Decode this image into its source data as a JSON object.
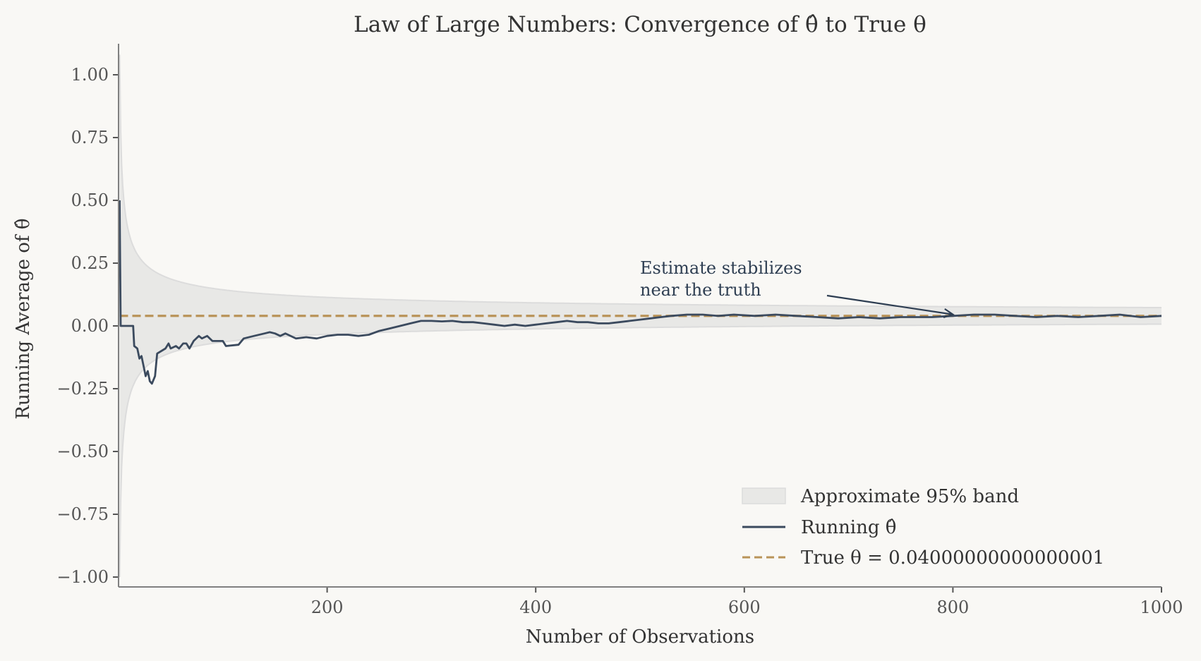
{
  "chart_data": {
    "type": "line",
    "title": "Law of Large Numbers: Convergence of θ̂ to True θ",
    "xlabel": "Number of Observations",
    "ylabel": "Running Average of θ̂",
    "xlim": [
      1,
      1000
    ],
    "ylim": [
      -1.03,
      1.12
    ],
    "xticks": [
      200,
      400,
      600,
      800,
      1000
    ],
    "xtick_labels": [
      "200",
      "400",
      "600",
      "800",
      "1000"
    ],
    "yticks": [
      1.0,
      0.75,
      0.5,
      0.25,
      0.0,
      -0.25,
      -0.5,
      -0.75,
      -1.0
    ],
    "ytick_labels": [
      "1.00",
      "0.75",
      "0.50",
      "0.25",
      "0.00",
      "−0.25",
      "−0.50",
      "−0.75",
      "−1.00"
    ],
    "grid": false,
    "legend_position": "lower-right",
    "colors": {
      "background": "#f9f8f5",
      "running": "#3b4a5e",
      "true_line": "#b99358",
      "band_fill": "#e8e8e6",
      "band_edge": "#dcdcdc",
      "spine": "#808080",
      "annotation": "#2e3e52"
    },
    "true_theta": 0.04,
    "band": {
      "label": "Approximate 95% band",
      "center": 0.04,
      "half_width_coef": 1.04,
      "formula": "true θ ± 1.04/√n"
    },
    "series": [
      {
        "name": "Running θ̂",
        "x": [
          1,
          2,
          14,
          15,
          18,
          20,
          22,
          24,
          26,
          28,
          30,
          32,
          35,
          37,
          45,
          48,
          50,
          55,
          58,
          62,
          65,
          68,
          72,
          77,
          80,
          85,
          90,
          100,
          103,
          115,
          120,
          130,
          140,
          145,
          150,
          155,
          160,
          170,
          180,
          190,
          200,
          210,
          220,
          230,
          240,
          250,
          260,
          270,
          280,
          290,
          300,
          310,
          320,
          330,
          340,
          350,
          360,
          370,
          380,
          390,
          400,
          410,
          420,
          430,
          440,
          450,
          460,
          470,
          480,
          490,
          500,
          510,
          520,
          530,
          545,
          560,
          575,
          590,
          610,
          630,
          650,
          670,
          690,
          710,
          730,
          750,
          780,
          800,
          820,
          840,
          860,
          880,
          900,
          920,
          940,
          960,
          980,
          1000
        ],
        "y": [
          0.5,
          0.0,
          0.0,
          -0.08,
          -0.09,
          -0.13,
          -0.12,
          -0.16,
          -0.2,
          -0.18,
          -0.22,
          -0.23,
          -0.2,
          -0.11,
          -0.09,
          -0.07,
          -0.09,
          -0.08,
          -0.09,
          -0.07,
          -0.07,
          -0.09,
          -0.06,
          -0.04,
          -0.05,
          -0.04,
          -0.06,
          -0.06,
          -0.08,
          -0.075,
          -0.05,
          -0.04,
          -0.03,
          -0.025,
          -0.03,
          -0.04,
          -0.03,
          -0.05,
          -0.045,
          -0.05,
          -0.04,
          -0.035,
          -0.035,
          -0.04,
          -0.035,
          -0.02,
          -0.01,
          0.0,
          0.01,
          0.02,
          0.02,
          0.018,
          0.02,
          0.015,
          0.015,
          0.01,
          0.005,
          0.0,
          0.005,
          0.0,
          0.005,
          0.01,
          0.015,
          0.02,
          0.015,
          0.015,
          0.01,
          0.01,
          0.015,
          0.02,
          0.025,
          0.03,
          0.035,
          0.04,
          0.045,
          0.045,
          0.04,
          0.045,
          0.04,
          0.045,
          0.04,
          0.035,
          0.03,
          0.035,
          0.03,
          0.035,
          0.035,
          0.04,
          0.045,
          0.045,
          0.04,
          0.035,
          0.04,
          0.035,
          0.04,
          0.045,
          0.035,
          0.04
        ]
      }
    ],
    "legend": [
      {
        "type": "patch",
        "label": "Approximate 95% band"
      },
      {
        "type": "line",
        "label": "Running θ̂"
      },
      {
        "type": "dashed",
        "label": "True θ = 0.04000000000000001"
      }
    ],
    "annotation": {
      "text_line1": "Estimate stabilizes",
      "text_line2": "near the truth",
      "arrow_target": {
        "x": 800,
        "y": 0.04
      },
      "text_anchor": {
        "x": 500,
        "y": 0.13
      }
    }
  }
}
